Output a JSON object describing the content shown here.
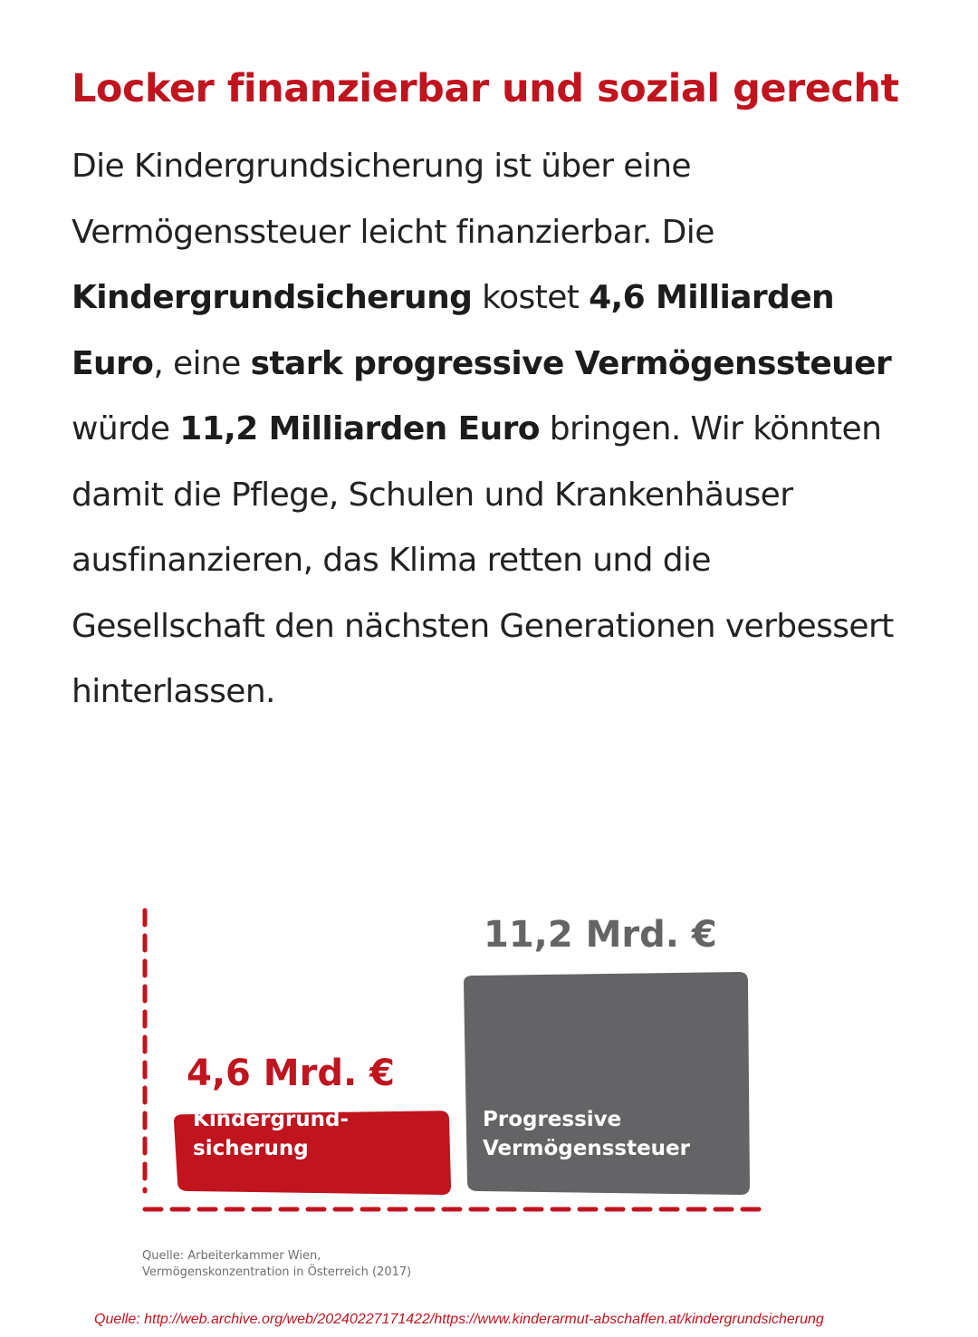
{
  "article": {
    "headline": "Locker finanzierbar und sozial gerecht",
    "paragraph": [
      {
        "text": "Die Kindergrundsicherung ist über eine Vermögenssteuer leicht finanzierbar. Die ",
        "bold": false
      },
      {
        "text": "Kindergrundsicherung",
        "bold": true
      },
      {
        "text": " kostet ",
        "bold": false
      },
      {
        "text": "4,6 Milliarden Euro",
        "bold": true
      },
      {
        "text": ", eine ",
        "bold": false
      },
      {
        "text": "stark progressive Vermögenssteuer",
        "bold": true
      },
      {
        "text": " würde ",
        "bold": false
      },
      {
        "text": "11,2 Milliarden Euro",
        "bold": true
      },
      {
        "text": " bringen. Wir könnten damit die Pflege, Schulen und Krankenhäuser ausfinanzieren, das Klima retten und die Gesellschaft den nächsten Generationen verbessert hinterlassen.",
        "bold": false
      }
    ]
  },
  "chart_data": {
    "type": "bar",
    "title": "",
    "xlabel": "",
    "ylabel": "",
    "categories": [
      "Kindergrund-\nsicherung",
      "Progressive\nVermögenssteuer"
    ],
    "values": [
      4.6,
      11.2
    ],
    "data_labels": [
      "4,6 Mrd. €",
      "11,2 Mrd. €"
    ],
    "unit": "Mrd. €",
    "ylim": [
      0,
      11.2
    ],
    "colors": [
      "#c0141f",
      "#646466"
    ],
    "axis_color": "#c0141f",
    "axis_style": "dashed",
    "grid": false,
    "source": [
      "Quelle: Arbeiterkammer Wien,",
      "Vermögenskonzentration in Österreich (2017)"
    ]
  },
  "footer": {
    "source": "Quelle: http://web.archive.org/web/20240227171422/https://www.kinderarmut-abschaffen.at/kindergrundsicherung"
  }
}
